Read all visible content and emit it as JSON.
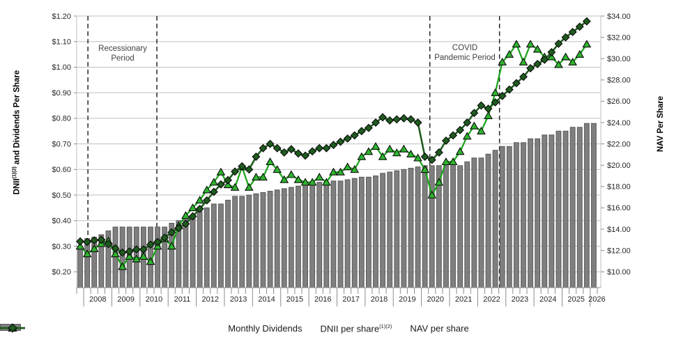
{
  "chart_data": {
    "type": "combo-bar-line",
    "title": "",
    "x_axis": {
      "start_quarter": "2007Q4",
      "years": [
        "2008",
        "2009",
        "2010",
        "2011",
        "2012",
        "2013",
        "2014",
        "2015",
        "2016",
        "2017",
        "2018",
        "2019",
        "2020",
        "2021",
        "2022",
        "2023",
        "2024",
        "2025",
        "2026"
      ]
    },
    "left_axis": {
      "title_main": "DNII",
      "title_sup": "(1)(2)",
      "title_rest": "and Dividends Per Share",
      "labels": [
        "$1.20",
        "$1.10",
        "$1.00",
        "$0.90",
        "$0.80",
        "$0.70",
        "$0.60",
        "$0.50",
        "$0.40",
        "$0.30",
        "$0.20"
      ],
      "values": [
        1.2,
        1.1,
        1.0,
        0.9,
        0.8,
        0.7,
        0.6,
        0.5,
        0.4,
        0.3,
        0.2
      ],
      "min": 0.2,
      "max": 1.2
    },
    "right_axis": {
      "title": "NAV Per Share",
      "labels": [
        "$34.00",
        "$32.00",
        "$30.00",
        "$28.00",
        "$26.00",
        "$24.00",
        "$22.00",
        "$20.00",
        "$18.00",
        "$16.00",
        "$14.00",
        "$12.00",
        "$10.00"
      ],
      "values": [
        34,
        32,
        30,
        28,
        26,
        24,
        22,
        20,
        18,
        16,
        14,
        12,
        10
      ],
      "min": 10,
      "max": 34
    },
    "dashed_line_slots": [
      1.6,
      11.4,
      50.2,
      60.1
    ],
    "annotations": [
      {
        "line1": "Recessionary",
        "line2": "Period"
      },
      {
        "line1": "COVID",
        "line2": "Pandemic Period"
      }
    ],
    "series": [
      {
        "name": "Monthly Dividends",
        "type": "bar",
        "axis": "left",
        "fill": "#7f7f7f",
        "border": "#595959",
        "values": [
          0.3,
          0.33,
          0.335,
          0.345,
          0.36,
          0.375,
          0.375,
          0.375,
          0.375,
          0.375,
          0.375,
          0.375,
          0.375,
          0.39,
          0.4,
          0.41,
          0.42,
          0.435,
          0.45,
          0.465,
          0.465,
          0.48,
          0.495,
          0.495,
          0.5,
          0.505,
          0.51,
          0.515,
          0.52,
          0.525,
          0.53,
          0.535,
          0.54,
          0.545,
          0.55,
          0.55,
          0.555,
          0.555,
          0.56,
          0.565,
          0.57,
          0.57,
          0.575,
          0.585,
          0.59,
          0.595,
          0.6,
          0.605,
          0.61,
          0.615,
          0.615,
          0.615,
          0.615,
          0.615,
          0.615,
          0.63,
          0.645,
          0.645,
          0.66,
          0.675,
          0.69,
          0.69,
          0.705,
          0.705,
          0.72,
          0.72,
          0.735,
          0.735,
          0.75,
          0.75,
          0.765,
          0.765,
          0.78,
          0.78
        ]
      },
      {
        "name": "DNII per share",
        "name_sup": "(1)(2)",
        "type": "line",
        "marker": "triangle",
        "axis": "left",
        "line_color": "#1da51d",
        "marker_fill": "#2fb52f",
        "marker_edge": "#0a0a0a",
        "values": [
          0.3,
          0.27,
          0.29,
          0.31,
          0.32,
          0.27,
          0.22,
          0.26,
          0.25,
          0.26,
          0.24,
          0.3,
          0.33,
          0.3,
          0.38,
          0.42,
          0.45,
          0.48,
          0.52,
          0.55,
          0.59,
          0.54,
          0.53,
          0.61,
          0.53,
          0.57,
          0.57,
          0.63,
          0.6,
          0.56,
          0.58,
          0.56,
          0.55,
          0.55,
          0.57,
          0.55,
          0.59,
          0.59,
          0.61,
          0.6,
          0.65,
          0.67,
          0.69,
          0.65,
          0.68,
          0.665,
          0.68,
          0.66,
          0.645,
          0.6,
          0.5,
          0.55,
          0.63,
          0.63,
          0.67,
          0.73,
          0.77,
          0.75,
          0.81,
          0.9,
          1.02,
          1.05,
          1.09,
          1.02,
          1.09,
          1.07,
          1.04,
          1.04,
          1.01,
          1.04,
          1.02,
          1.05,
          1.09
        ]
      },
      {
        "name": "NAV per share",
        "type": "line",
        "marker": "diamond",
        "axis": "right",
        "line_color": "#1f5c1f",
        "marker_fill": "#1f5c1f",
        "marker_edge": "#0a0a0a",
        "values": [
          12.85,
          12.8,
          12.95,
          13.0,
          12.6,
          12.2,
          11.8,
          11.9,
          12.1,
          12.1,
          12.55,
          12.8,
          13.2,
          13.7,
          14.1,
          14.5,
          15.2,
          15.9,
          16.7,
          17.5,
          18.2,
          18.6,
          19.4,
          19.9,
          19.6,
          20.8,
          21.6,
          22.0,
          21.6,
          21.2,
          21.5,
          21.1,
          20.9,
          21.3,
          21.6,
          21.6,
          21.9,
          22.2,
          22.5,
          22.8,
          23.2,
          23.5,
          24.0,
          24.5,
          24.2,
          24.3,
          24.4,
          24.3,
          24.0,
          20.8,
          20.5,
          21.2,
          22.3,
          22.8,
          23.3,
          24.0,
          24.9,
          25.6,
          25.3,
          25.9,
          26.5,
          27.1,
          27.7,
          28.3,
          29.1,
          29.5,
          29.9,
          30.6,
          31.4,
          32.0,
          32.5,
          33.0,
          33.5
        ]
      }
    ],
    "legend": [
      {
        "label": "Monthly Dividends"
      },
      {
        "label": "DNII per share",
        "label_sup": "(1)(2)"
      },
      {
        "label": "NAV per share"
      }
    ]
  }
}
